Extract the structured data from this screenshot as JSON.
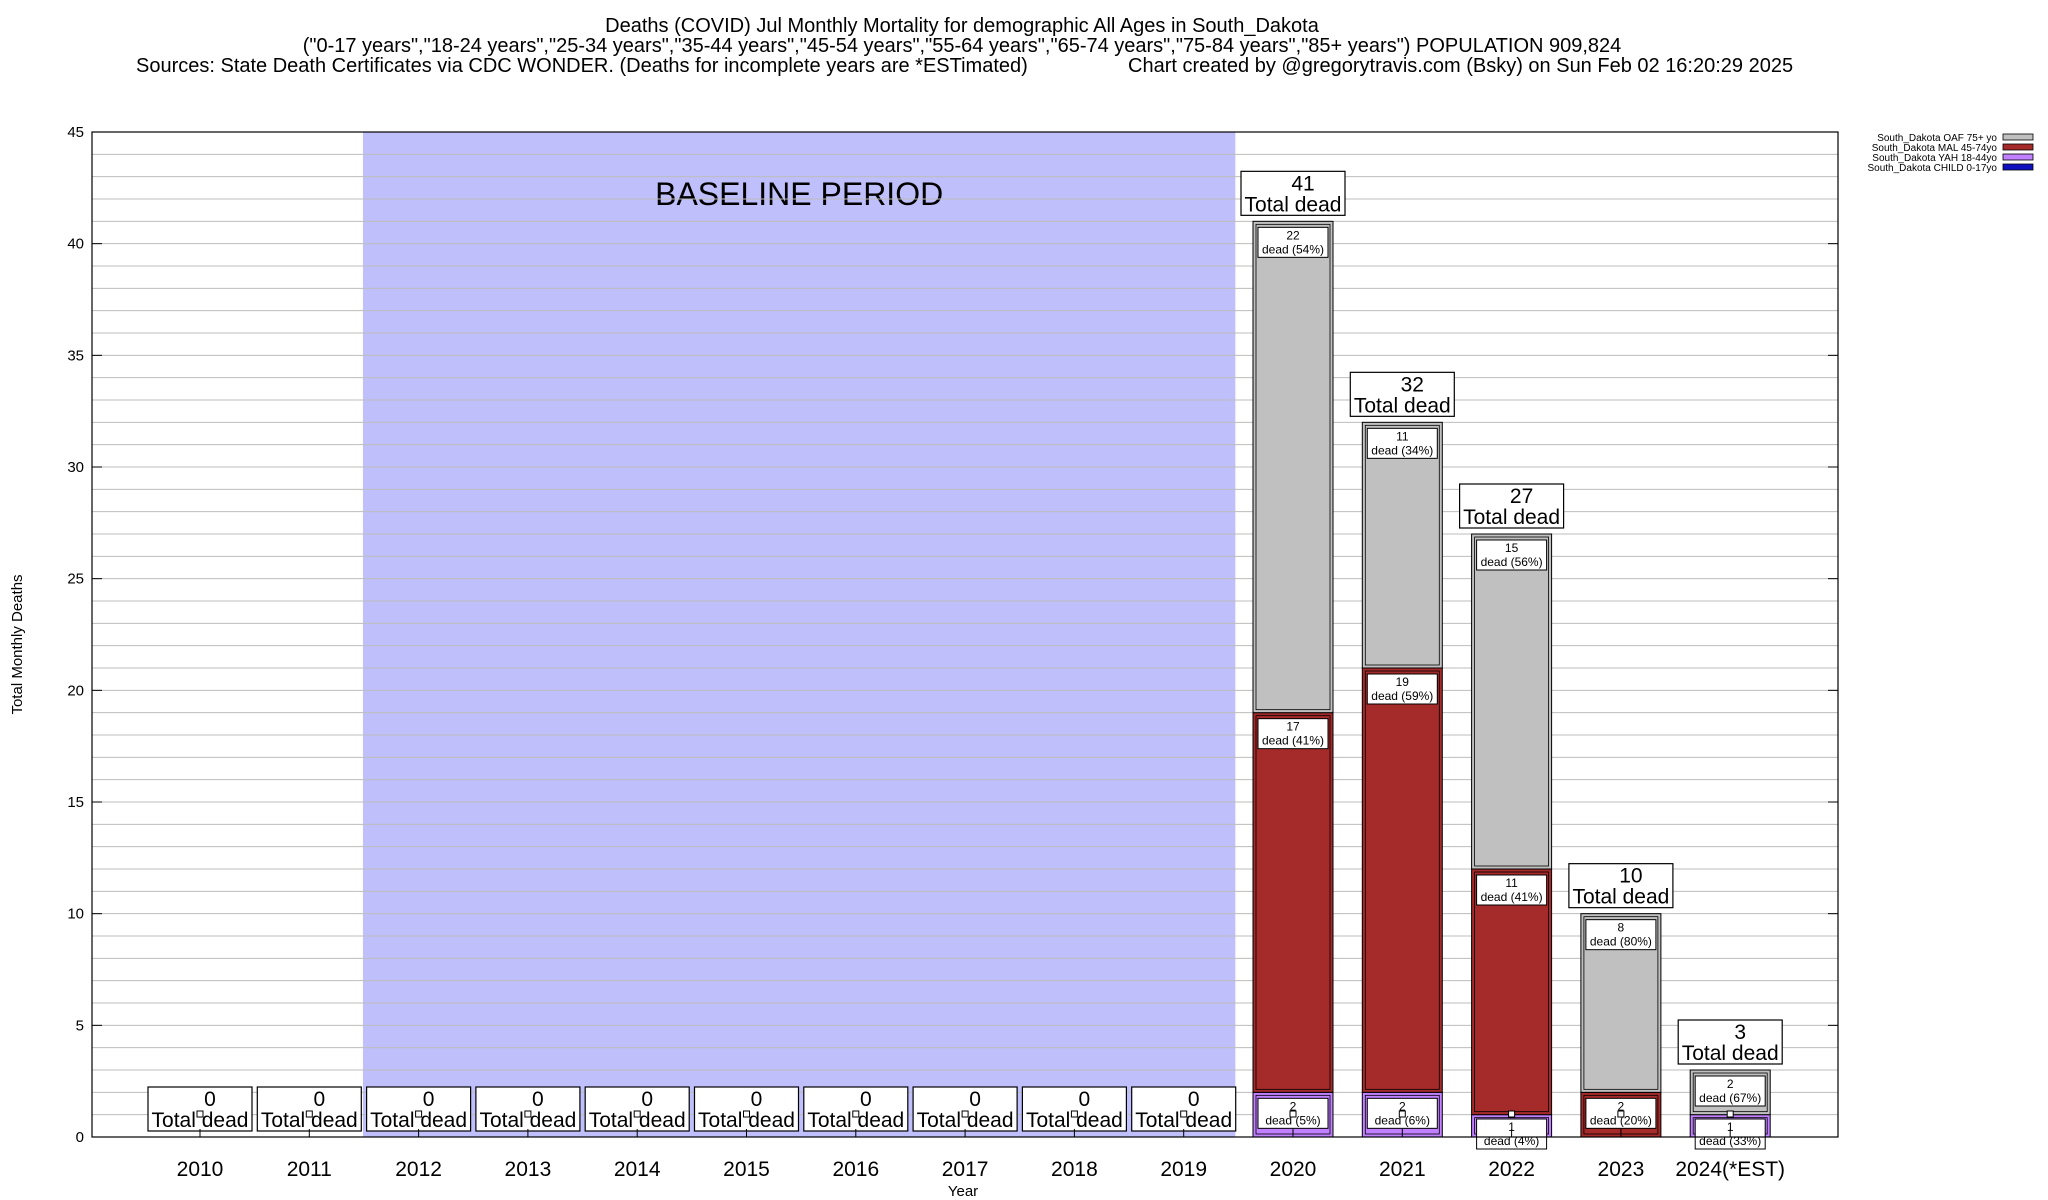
{
  "header": {
    "title_line1": "Deaths (COVID) Jul Monthly Mortality for demographic All Ages in South_Dakota",
    "title_line2": "(\"0-17 years\",\"18-24 years\",\"25-34 years\",\"35-44 years\",\"45-54 years\",\"55-64 years\",\"65-74 years\",\"75-84 years\",\"85+ years\") POPULATION 909,824",
    "title_line3_left": "Sources: State Death Certificates via CDC WONDER. (Deaths for incomplete years are *ESTimated)",
    "title_line3_right": "Chart created by @gregorytravis.com (Bsky) on Sun Feb 02 16:20:29 2025"
  },
  "chart_data": {
    "type": "bar",
    "stacked": true,
    "categories": [
      "2010",
      "2011",
      "2012",
      "2013",
      "2014",
      "2015",
      "2016",
      "2017",
      "2018",
      "2019",
      "2020",
      "2021",
      "2022",
      "2023",
      "2024(*EST)"
    ],
    "xlabel": "Year",
    "ylabel": "Total Monthly Deaths",
    "ylim": [
      0,
      45
    ],
    "yticks": [
      0,
      5,
      10,
      15,
      20,
      25,
      30,
      35,
      40,
      45
    ],
    "grid": true,
    "legend_position": "top-right, outside plot",
    "baseline_period": {
      "label": "BASELINE PERIOD",
      "from": "2012",
      "to": "2019",
      "color": "#bfbffb"
    },
    "series": [
      {
        "name": "South_Dakota CHILD 0-17yo",
        "color": "#1010c0",
        "values": [
          0,
          0,
          0,
          0,
          0,
          0,
          0,
          0,
          0,
          0,
          0,
          0,
          0,
          0,
          0
        ]
      },
      {
        "name": "South_Dakota YAH 18-44yo",
        "color": "#c080ff",
        "values": [
          0,
          0,
          0,
          0,
          0,
          0,
          0,
          0,
          0,
          0,
          2,
          2,
          1,
          0,
          1
        ]
      },
      {
        "name": "South_Dakota MAL 45-74yo",
        "color": "#a52a2a",
        "values": [
          0,
          0,
          0,
          0,
          0,
          0,
          0,
          0,
          0,
          0,
          17,
          19,
          11,
          2,
          0
        ]
      },
      {
        "name": "South_Dakota OAF 75+ yo",
        "color": "#c0c0c0",
        "values": [
          0,
          0,
          0,
          0,
          0,
          0,
          0,
          0,
          0,
          0,
          22,
          11,
          15,
          8,
          2
        ]
      }
    ],
    "totals": [
      0,
      0,
      0,
      0,
      0,
      0,
      0,
      0,
      0,
      0,
      41,
      32,
      27,
      10,
      3
    ],
    "total_label": "Total dead",
    "segment_label_word": "dead",
    "segment_labels": [
      {
        "category": "2020",
        "series": "South_Dakota YAH 18-44yo",
        "count": "2",
        "text": "dead (5%)"
      },
      {
        "category": "2020",
        "series": "South_Dakota MAL 45-74yo",
        "count": "17",
        "text": "dead (41%)"
      },
      {
        "category": "2020",
        "series": "South_Dakota OAF 75+ yo",
        "count": "22",
        "text": "dead (54%)"
      },
      {
        "category": "2021",
        "series": "South_Dakota YAH 18-44yo",
        "count": "2",
        "text": "dead (6%)"
      },
      {
        "category": "2021",
        "series": "South_Dakota MAL 45-74yo",
        "count": "19",
        "text": "dead (59%)"
      },
      {
        "category": "2021",
        "series": "South_Dakota OAF 75+ yo",
        "count": "11",
        "text": "dead (34%)"
      },
      {
        "category": "2022",
        "series": "South_Dakota YAH 18-44yo",
        "count": "1",
        "text": "dead (4%)"
      },
      {
        "category": "2022",
        "series": "South_Dakota MAL 45-74yo",
        "count": "11",
        "text": "dead (41%)"
      },
      {
        "category": "2022",
        "series": "South_Dakota OAF 75+ yo",
        "count": "15",
        "text": "dead (56%)"
      },
      {
        "category": "2023",
        "series": "South_Dakota MAL 45-74yo",
        "count": "2",
        "text": "dead (20%)"
      },
      {
        "category": "2023",
        "series": "South_Dakota OAF 75+ yo",
        "count": "8",
        "text": "dead (80%)"
      },
      {
        "category": "2024(*EST)",
        "series": "South_Dakota YAH 18-44yo",
        "count": "1",
        "text": "dead (33%)"
      },
      {
        "category": "2024(*EST)",
        "series": "South_Dakota OAF 75+ yo",
        "count": "2",
        "text": "dead (67%)"
      }
    ],
    "legend_order": [
      "South_Dakota OAF 75+ yo",
      "South_Dakota MAL 45-74yo",
      "South_Dakota YAH 18-44yo",
      "South_Dakota CHILD 0-17yo"
    ]
  }
}
